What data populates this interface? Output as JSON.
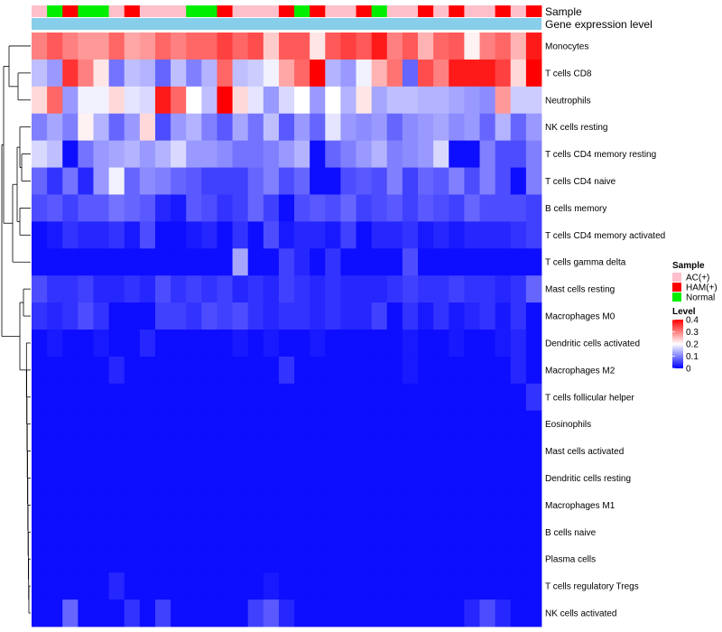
{
  "chart_data": {
    "type": "heatmap",
    "annotation_rows": [
      "Sample",
      "Gene expression level"
    ],
    "sample_groups": [
      "AC(+)",
      "HAM(+)",
      "Normal"
    ],
    "column_samples": [
      "AC(+)",
      "Normal",
      "HAM(+)",
      "Normal",
      "Normal",
      "AC(+)",
      "HAM(+)",
      "AC(+)",
      "AC(+)",
      "AC(+)",
      "Normal",
      "Normal",
      "HAM(+)",
      "AC(+)",
      "AC(+)",
      "AC(+)",
      "HAM(+)",
      "Normal",
      "HAM(+)",
      "AC(+)",
      "AC(+)",
      "HAM(+)",
      "Normal",
      "AC(+)",
      "AC(+)",
      "HAM(+)",
      "AC(+)",
      "HAM(+)",
      "AC(+)",
      "AC(+)",
      "HAM(+)",
      "AC(+)",
      "HAM(+)"
    ],
    "rows": [
      "Monocytes",
      "T cells CD8",
      "Neutrophils",
      "NK cells resting",
      "T cells CD4 memory resting",
      "T cells CD4 naive",
      "B cells memory",
      "T cells CD4 memory activated",
      "T cells gamma delta",
      "Mast cells resting",
      "Macrophages M0",
      "Dendritic cells activated",
      "Macrophages M2",
      "T cells follicular helper",
      "Eosinophils",
      "Mast cells activated",
      "Dendritic cells resting",
      "Macrophages M1",
      "B cells naive",
      "Plasma cells",
      "T cells regulatory  Tregs",
      "NK cells activated"
    ],
    "values": [
      [
        0.3,
        0.33,
        0.3,
        0.28,
        0.28,
        0.32,
        0.27,
        0.28,
        0.32,
        0.3,
        0.32,
        0.32,
        0.35,
        0.32,
        0.34,
        0.24,
        0.33,
        0.33,
        0.22,
        0.33,
        0.35,
        0.33,
        0.38,
        0.3,
        0.33,
        0.26,
        0.32,
        0.33,
        0.21,
        0.3,
        0.32,
        0.26,
        0.38
      ],
      [
        0.15,
        0.12,
        0.36,
        0.3,
        0.22,
        0.09,
        0.15,
        0.14,
        0.08,
        0.15,
        0.1,
        0.14,
        0.32,
        0.15,
        0.16,
        0.19,
        0.27,
        0.32,
        0.4,
        0.14,
        0.12,
        0.19,
        0.26,
        0.31,
        0.08,
        0.34,
        0.3,
        0.38,
        0.38,
        0.38,
        0.35,
        0.23,
        0.4
      ],
      [
        0.23,
        0.32,
        0.12,
        0.19,
        0.19,
        0.23,
        0.18,
        0.17,
        0.38,
        0.32,
        0.2,
        0.15,
        0.4,
        0.23,
        0.18,
        0.12,
        0.17,
        0.2,
        0.12,
        0.2,
        0.14,
        0.22,
        0.13,
        0.15,
        0.15,
        0.14,
        0.14,
        0.13,
        0.12,
        0.11,
        0.28,
        0.16,
        0.16
      ],
      [
        0.1,
        0.13,
        0.1,
        0.21,
        0.14,
        0.08,
        0.12,
        0.23,
        0.06,
        0.12,
        0.14,
        0.1,
        0.07,
        0.13,
        0.09,
        0.15,
        0.07,
        0.12,
        0.08,
        0.18,
        0.12,
        0.11,
        0.12,
        0.08,
        0.11,
        0.12,
        0.13,
        0.11,
        0.12,
        0.08,
        0.14,
        0.08,
        0.12
      ],
      [
        0.17,
        0.15,
        0.01,
        0.09,
        0.12,
        0.13,
        0.14,
        0.12,
        0.14,
        0.17,
        0.12,
        0.12,
        0.11,
        0.09,
        0.09,
        0.1,
        0.12,
        0.14,
        0.01,
        0.08,
        0.1,
        0.12,
        0.14,
        0.1,
        0.11,
        0.12,
        0.17,
        0.01,
        0.01,
        0.1,
        0.06,
        0.06,
        0.1
      ],
      [
        0.08,
        0.04,
        0.09,
        0.03,
        0.12,
        0.19,
        0.08,
        0.11,
        0.1,
        0.08,
        0.07,
        0.05,
        0.05,
        0.05,
        0.08,
        0.1,
        0.06,
        0.08,
        0.01,
        0.01,
        0.06,
        0.07,
        0.06,
        0.1,
        0.05,
        0.08,
        0.07,
        0.1,
        0.06,
        0.1,
        0.06,
        0.01,
        0.1
      ],
      [
        0.06,
        0.07,
        0.05,
        0.07,
        0.07,
        0.09,
        0.08,
        0.07,
        0.03,
        0.02,
        0.07,
        0.06,
        0.04,
        0.05,
        0.08,
        0.05,
        0.01,
        0.06,
        0.07,
        0.06,
        0.08,
        0.05,
        0.06,
        0.07,
        0.05,
        0.07,
        0.06,
        0.05,
        0.08,
        0.06,
        0.06,
        0.06,
        0.05
      ],
      [
        0.01,
        0.02,
        0.04,
        0.03,
        0.03,
        0.04,
        0.02,
        0.06,
        0.01,
        0.01,
        0.02,
        0.03,
        0.01,
        0.04,
        0.01,
        0.06,
        0.02,
        0.03,
        0.03,
        0.02,
        0.05,
        0.01,
        0.03,
        0.03,
        0.04,
        0.02,
        0.03,
        0.02,
        0.03,
        0.03,
        0.03,
        0.04,
        0.05
      ],
      [
        0.01,
        0.01,
        0.01,
        0.01,
        0.01,
        0.01,
        0.01,
        0.01,
        0.01,
        0.01,
        0.01,
        0.01,
        0.01,
        0.13,
        0.01,
        0.01,
        0.05,
        0.03,
        0.01,
        0.04,
        0.01,
        0.01,
        0.01,
        0.01,
        0.06,
        0.01,
        0.01,
        0.01,
        0.01,
        0.01,
        0.01,
        0.01,
        0.01
      ],
      [
        0.06,
        0.04,
        0.04,
        0.05,
        0.03,
        0.03,
        0.04,
        0.03,
        0.06,
        0.04,
        0.05,
        0.04,
        0.05,
        0.03,
        0.04,
        0.03,
        0.05,
        0.04,
        0.03,
        0.04,
        0.03,
        0.03,
        0.03,
        0.04,
        0.05,
        0.04,
        0.04,
        0.05,
        0.04,
        0.04,
        0.03,
        0.04,
        0.08
      ],
      [
        0.04,
        0.03,
        0.04,
        0.06,
        0.04,
        0.01,
        0.01,
        0.01,
        0.05,
        0.05,
        0.04,
        0.06,
        0.05,
        0.06,
        0.04,
        0.03,
        0.04,
        0.04,
        0.03,
        0.04,
        0.03,
        0.03,
        0.05,
        0.01,
        0.04,
        0.02,
        0.04,
        0.02,
        0.03,
        0.04,
        0.02,
        0.04,
        0.01
      ],
      [
        0.01,
        0.02,
        0.01,
        0.01,
        0.02,
        0.01,
        0.01,
        0.03,
        0.01,
        0.01,
        0.01,
        0.01,
        0.01,
        0.02,
        0.01,
        0.02,
        0.01,
        0.01,
        0.02,
        0.01,
        0.01,
        0.01,
        0.01,
        0.01,
        0.02,
        0.01,
        0.01,
        0.02,
        0.01,
        0.01,
        0.02,
        0.03,
        0.01
      ],
      [
        0.01,
        0.01,
        0.01,
        0.01,
        0.01,
        0.03,
        0.01,
        0.01,
        0.01,
        0.01,
        0.01,
        0.01,
        0.01,
        0.01,
        0.01,
        0.01,
        0.04,
        0.01,
        0.01,
        0.01,
        0.01,
        0.01,
        0.01,
        0.01,
        0.02,
        0.01,
        0.01,
        0.01,
        0.01,
        0.01,
        0.01,
        0.03,
        0.01
      ],
      [
        0.01,
        0.01,
        0.01,
        0.01,
        0.01,
        0.01,
        0.01,
        0.01,
        0.01,
        0.01,
        0.01,
        0.01,
        0.01,
        0.01,
        0.01,
        0.01,
        0.01,
        0.01,
        0.01,
        0.01,
        0.01,
        0.01,
        0.01,
        0.01,
        0.01,
        0.01,
        0.01,
        0.01,
        0.01,
        0.01,
        0.01,
        0.01,
        0.04
      ],
      [
        0.01,
        0.01,
        0.01,
        0.01,
        0.01,
        0.01,
        0.01,
        0.01,
        0.01,
        0.01,
        0.01,
        0.01,
        0.01,
        0.01,
        0.01,
        0.01,
        0.01,
        0.01,
        0.01,
        0.01,
        0.01,
        0.01,
        0.01,
        0.01,
        0.01,
        0.01,
        0.01,
        0.01,
        0.01,
        0.01,
        0.01,
        0.01,
        0.01
      ],
      [
        0.01,
        0.01,
        0.01,
        0.01,
        0.01,
        0.01,
        0.01,
        0.01,
        0.01,
        0.01,
        0.01,
        0.01,
        0.01,
        0.01,
        0.01,
        0.01,
        0.01,
        0.01,
        0.01,
        0.01,
        0.01,
        0.01,
        0.01,
        0.01,
        0.01,
        0.01,
        0.01,
        0.01,
        0.01,
        0.01,
        0.01,
        0.01,
        0.01
      ],
      [
        0.01,
        0.01,
        0.01,
        0.01,
        0.01,
        0.01,
        0.01,
        0.01,
        0.01,
        0.01,
        0.01,
        0.01,
        0.01,
        0.01,
        0.01,
        0.01,
        0.01,
        0.01,
        0.01,
        0.01,
        0.01,
        0.01,
        0.01,
        0.01,
        0.01,
        0.01,
        0.01,
        0.01,
        0.01,
        0.01,
        0.01,
        0.01,
        0.01
      ],
      [
        0.01,
        0.01,
        0.01,
        0.01,
        0.01,
        0.01,
        0.01,
        0.01,
        0.01,
        0.01,
        0.01,
        0.01,
        0.01,
        0.01,
        0.01,
        0.01,
        0.01,
        0.01,
        0.01,
        0.01,
        0.01,
        0.01,
        0.01,
        0.01,
        0.01,
        0.01,
        0.01,
        0.01,
        0.01,
        0.01,
        0.01,
        0.01,
        0.01
      ],
      [
        0.01,
        0.01,
        0.01,
        0.01,
        0.01,
        0.01,
        0.01,
        0.01,
        0.01,
        0.01,
        0.01,
        0.01,
        0.01,
        0.01,
        0.01,
        0.01,
        0.01,
        0.01,
        0.01,
        0.01,
        0.01,
        0.01,
        0.01,
        0.01,
        0.01,
        0.01,
        0.01,
        0.01,
        0.01,
        0.01,
        0.01,
        0.01,
        0.01
      ],
      [
        0.01,
        0.01,
        0.01,
        0.01,
        0.01,
        0.01,
        0.01,
        0.01,
        0.01,
        0.01,
        0.01,
        0.01,
        0.01,
        0.01,
        0.01,
        0.01,
        0.01,
        0.01,
        0.01,
        0.01,
        0.01,
        0.01,
        0.01,
        0.01,
        0.01,
        0.01,
        0.01,
        0.01,
        0.01,
        0.01,
        0.01,
        0.01,
        0.01
      ],
      [
        0.01,
        0.01,
        0.01,
        0.01,
        0.01,
        0.03,
        0.01,
        0.01,
        0.01,
        0.01,
        0.01,
        0.01,
        0.01,
        0.01,
        0.01,
        0.02,
        0.01,
        0.01,
        0.01,
        0.01,
        0.01,
        0.01,
        0.01,
        0.01,
        0.01,
        0.01,
        0.01,
        0.01,
        0.01,
        0.01,
        0.01,
        0.01,
        0.01
      ],
      [
        0.01,
        0.01,
        0.08,
        0.01,
        0.01,
        0.01,
        0.04,
        0.01,
        0.05,
        0.01,
        0.01,
        0.01,
        0.01,
        0.01,
        0.05,
        0.07,
        0.03,
        0.01,
        0.01,
        0.01,
        0.01,
        0.01,
        0.01,
        0.01,
        0.01,
        0.01,
        0.01,
        0.01,
        0.03,
        0.06,
        0.03,
        0.01,
        0.01
      ]
    ],
    "legend_sample": {
      "title": "Sample",
      "items": [
        {
          "label": "AC(+)",
          "color": "#FFC0CB"
        },
        {
          "label": "HAM(+)",
          "color": "#FF0000"
        },
        {
          "label": "Normal",
          "color": "#00EE00"
        }
      ]
    },
    "legend_level": {
      "title": "Level",
      "ticks": [
        "0.4",
        "0.3",
        "0.2",
        "0.1",
        "0"
      ],
      "range": [
        0,
        0.4
      ],
      "colors": {
        "low": "#0000FF",
        "mid": "#FFFFFF",
        "high": "#FF0000"
      }
    },
    "gene_expression_color": "#87CEEB"
  }
}
